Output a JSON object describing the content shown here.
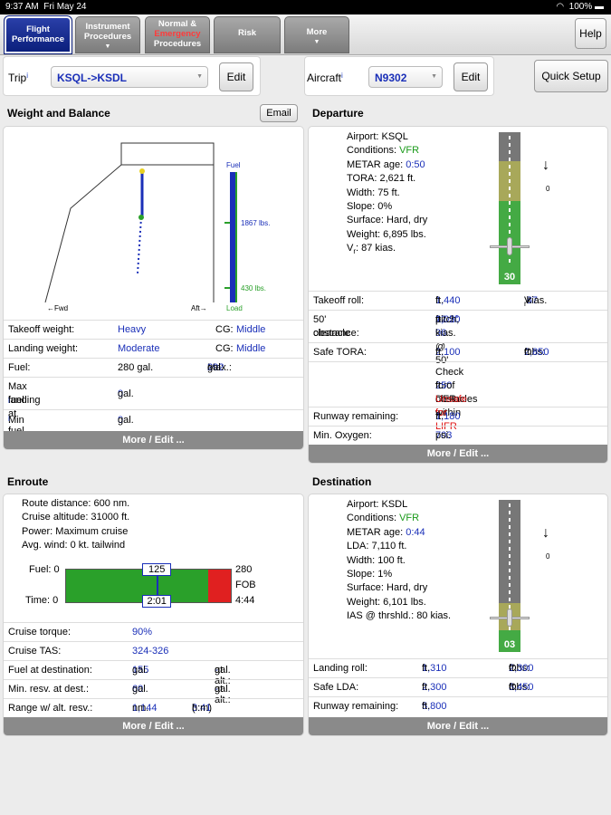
{
  "status": {
    "time": "9:37 AM",
    "date": "Fri May 24",
    "battery": "100%"
  },
  "tabs": {
    "flight_l1": "Flight",
    "flight_l2": "Performance",
    "instr_l1": "Instrument",
    "instr_l2": "Procedures",
    "ne_l1": "Normal &",
    "ne_l2": "Emergency",
    "ne_l3": "Procedures",
    "risk": "Risk",
    "more": "More",
    "help": "Help"
  },
  "toolbar": {
    "trip_label": "Trip",
    "trip_value": "KSQL->KSDL",
    "edit": "Edit",
    "aircraft_label": "Aircraft",
    "aircraft_value": "N9302",
    "quick_setup": "Quick Setup",
    "info_mark": "i"
  },
  "wb": {
    "title": "Weight and Balance",
    "email": "Email",
    "fuel_label": "Fuel",
    "fuel_mid": "1867 lbs.",
    "fuel_low": "430 lbs.",
    "load": "Load",
    "fwd": "←Fwd",
    "aft": "Aft→",
    "rows": [
      {
        "l": "Takeoff weight:",
        "v": "Heavy",
        "l2": "CG:",
        "v2": "Middle"
      },
      {
        "l": "Landing weight:",
        "v": "Moderate",
        "l2": "CG:",
        "v2": "Middle"
      },
      {
        "l": "Fuel:",
        "v": "280 gal.",
        "l2": "Max.:",
        "v2": "292",
        "u2": " gal."
      }
    ],
    "maxfuel_l1": "Max fuel at",
    "maxfuel_l2": "landing",
    "maxfuel_v": "0",
    "maxfuel_u": " gal.",
    "minfuel_l": "Min fuel used",
    "minfuel_v": "0",
    "minfuel_u": " gal.",
    "more": "More / Edit ..."
  },
  "dep": {
    "title": "Departure",
    "airport": "Airport: KSQL",
    "cond_l": "Conditions: ",
    "cond_v": "VFR",
    "metar_l": "METAR age: ",
    "metar_v": "0:50",
    "tora": "TORA: 2,621 ft.",
    "width": "Width: 75 ft.",
    "slope": "Slope: 0%",
    "surface": "Surface: Hard, dry",
    "weight": "Weight: 6,895 lbs.",
    "vr_pre": "V",
    "vr_sub": "r",
    "vr_post": ": 87 kias.",
    "runway_num": "30",
    "wind": "0",
    "to_roll_l": "Takeoff roll:",
    "to_roll_v": "1,440",
    "to_roll_u": " ft.",
    "vr2_pre": "V",
    "vr2_sub": "r",
    "vr2_colon": ":",
    "vr2_v": "87",
    "vr2_u": " kias.",
    "obst_l1": "50' obstacle",
    "obst_l2": "clearance:",
    "obst_v1": "2,020",
    "obst_u1": " ft. ",
    "obst_v2": "12.5°",
    "obst_u2": " pitch,",
    "obst_v3": "96",
    "obst_u3": " kias. @ 50'",
    "safe_l": "Safe TORA:",
    "safe_v": "2,100",
    "safe_u": " ft.",
    "obs_l": "Obs:",
    "obs_v": "2,850",
    "obs_u": " ft.",
    "check1": "Check for obstacles within",
    "check_v": "250",
    "check2": " ft. of DER.",
    "unsafe": "Unsafe for LIFR",
    "rwy_rem_l": "Runway remaining:",
    "rwy_rem_v": "1,180",
    "rwy_rem_u": " ft.",
    "oxy_l": "Min. Oxygen:",
    "oxy_v": "703",
    "oxy_u": " psi.",
    "more": "More / Edit ..."
  },
  "enr": {
    "title": "Enroute",
    "dist": "Route distance: 600 nm.",
    "alt": "Cruise altitude: 31000 ft.",
    "power": "Power: Maximum cruise",
    "wind": "Avg. wind: 0 kt. tailwind",
    "fuel_l": "Fuel: 0",
    "time_l": "Time: 0",
    "fuel_val": "125",
    "time_val": "2:01",
    "fuel_r": "280",
    "fob": "FOB",
    "time_r": "4:44",
    "fuel_used_fraction": 0.55,
    "fuel_reserve_fraction": 0.14,
    "torque_l": "Cruise torque:",
    "torque_v": "90%",
    "tas_l": "Cruise TAS:",
    "tas_v": "324-326",
    "fad_l": "Fuel at destination:",
    "fad_v": "155",
    "fad_u": " gal.",
    "fad_l2": "at alt.:",
    "fad_v2": "-",
    "fad_u2": " gal.",
    "mrd_l": "Min. resv. at dest.:",
    "mrd_v": "60",
    "mrd_u": " gal.",
    "mrd_l2": "at alt.:",
    "mrd_v2": "-",
    "mrd_u2": " gal.",
    "range_l": "Range w/ alt. resv.:",
    "range_v": "1,144",
    "range_u": " nm.",
    "range_t1": "(",
    "range_t": "3:41",
    "range_t2": " h:m)",
    "more": "More / Edit ..."
  },
  "dest": {
    "title": "Destination",
    "airport": "Airport: KSDL",
    "cond_l": "Conditions: ",
    "cond_v": "VFR",
    "metar_l": "METAR age: ",
    "metar_v": "0:44",
    "lda": "LDA: 7,110 ft.",
    "width": "Width: 100 ft.",
    "slope": "Slope: 1%",
    "surface": "Surface: Hard, dry",
    "weight": "Weight: 6,101 lbs.",
    "ias": "IAS @ thrshld.: 80 kias.",
    "runway_num": "03",
    "wind": "0",
    "roll_l": "Landing roll:",
    "roll_v": "1,310",
    "roll_u": " ft.",
    "obs_l": "Obs:",
    "obs_v": "2,300",
    "obs_u": " ft.",
    "lda_l": "Safe LDA:",
    "lda_v": "2,300",
    "lda_u": " ft.",
    "obs2_l": "Obs:",
    "obs2_v": "3,450",
    "obs2_u": " ft.",
    "rem_l": "Runway remaining:",
    "rem_v": "5,800",
    "rem_u": " ft.",
    "more": "More / Edit ..."
  },
  "colors": {
    "accent": "#1a2fb8",
    "safe": "#44aa44",
    "caution": "#a8a85a",
    "warn": "#e02020"
  }
}
